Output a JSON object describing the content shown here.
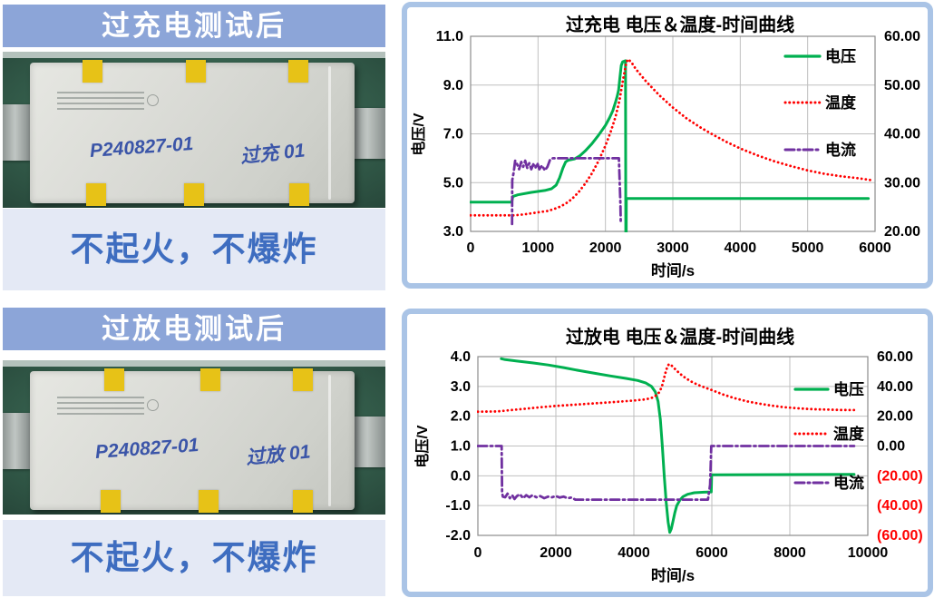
{
  "colors": {
    "banner": "#8CA5D8",
    "card_border": "#AAC4E6",
    "verdict_bg": "#E4E9F5",
    "verdict_fg": "#3E6DC0",
    "voltage_green": "#00B050",
    "temperature_red": "#FF0000",
    "current_purple": "#7030A0"
  },
  "panels": {
    "overcharge": {
      "header": "过充电测试后",
      "result": "不起火，不爆炸",
      "cell_markings": {
        "id": "P240827-01",
        "test": "过充 01"
      }
    },
    "overdischarge": {
      "header": "过放电测试后",
      "result": "不起火，不爆炸",
      "cell_markings": {
        "id": "P240827-01",
        "test": "过放 01"
      }
    }
  },
  "chart_data": [
    {
      "type": "line",
      "title": "过充电 电压＆温度-时间曲线",
      "xlabel": "时间/s",
      "ylabel_left": "电压/V",
      "grid": true,
      "legend": {
        "position": "right-inside",
        "entries": [
          "电压",
          "温度",
          "电流"
        ]
      },
      "x": {
        "min": 0,
        "max": 6000,
        "ticks": [
          {
            "v": 0,
            "t": "0"
          },
          {
            "v": 1000,
            "t": "1000"
          },
          {
            "v": 2000,
            "t": "2000"
          },
          {
            "v": 3000,
            "t": "3000"
          },
          {
            "v": 4000,
            "t": "4000"
          },
          {
            "v": 5000,
            "t": "5000"
          },
          {
            "v": 6000,
            "t": "6000"
          }
        ]
      },
      "y_left": {
        "min": 3,
        "max": 11,
        "ticks": [
          {
            "v": 11,
            "t": "11.0"
          },
          {
            "v": 9,
            "t": "9.0"
          },
          {
            "v": 7,
            "t": "7.0"
          },
          {
            "v": 5,
            "t": "5.0"
          },
          {
            "v": 3,
            "t": "3.0"
          }
        ]
      },
      "y_right": {
        "min": 20,
        "max": 60,
        "ticks": [
          {
            "v": 60,
            "t": "60.00"
          },
          {
            "v": 50,
            "t": "50.00"
          },
          {
            "v": 40,
            "t": "40.00"
          },
          {
            "v": 30,
            "t": "30.00"
          },
          {
            "v": 20,
            "t": "20.00"
          }
        ]
      },
      "series": [
        {
          "name": "电压",
          "color": "#00B050",
          "style": "solid",
          "axis": "left",
          "points": [
            [
              0,
              4.2
            ],
            [
              610,
              4.2
            ],
            [
              625,
              4.43
            ],
            [
              700,
              4.5
            ],
            [
              900,
              4.6
            ],
            [
              1100,
              4.68
            ],
            [
              1200,
              4.75
            ],
            [
              1270,
              4.9
            ],
            [
              1320,
              5.2
            ],
            [
              1370,
              5.6
            ],
            [
              1410,
              5.85
            ],
            [
              1450,
              5.92
            ],
            [
              1540,
              5.97
            ],
            [
              1620,
              6.1
            ],
            [
              1700,
              6.3
            ],
            [
              1800,
              6.6
            ],
            [
              1900,
              6.95
            ],
            [
              2000,
              7.35
            ],
            [
              2060,
              7.65
            ],
            [
              2110,
              7.95
            ],
            [
              2150,
              8.3
            ],
            [
              2175,
              8.55
            ],
            [
              2195,
              8.8
            ],
            [
              2215,
              9.3
            ],
            [
              2235,
              9.8
            ],
            [
              2255,
              9.95
            ],
            [
              2298,
              10.0
            ],
            [
              2302,
              2.95
            ],
            [
              2308,
              2.95
            ],
            [
              2310,
              4.35
            ],
            [
              5900,
              4.35
            ]
          ]
        },
        {
          "name": "温度",
          "color": "#FF0000",
          "style": "dotted",
          "axis": "right",
          "points": [
            [
              0,
              23.3
            ],
            [
              650,
              23.3
            ],
            [
              800,
              23.5
            ],
            [
              1000,
              23.9
            ],
            [
              1150,
              24.2
            ],
            [
              1300,
              24.9
            ],
            [
              1400,
              25.6
            ],
            [
              1500,
              26.6
            ],
            [
              1600,
              28.0
            ],
            [
              1700,
              29.8
            ],
            [
              1800,
              31.9
            ],
            [
              1900,
              34.5
            ],
            [
              2000,
              37.6
            ],
            [
              2080,
              40.5
            ],
            [
              2150,
              43.5
            ],
            [
              2210,
              47.0
            ],
            [
              2260,
              51.0
            ],
            [
              2300,
              54.0
            ],
            [
              2330,
              55.3
            ],
            [
              2380,
              54.8
            ],
            [
              2450,
              53.3
            ],
            [
              2600,
              50.8
            ],
            [
              2800,
              47.9
            ],
            [
              3000,
              45.4
            ],
            [
              3200,
              43.2
            ],
            [
              3400,
              41.4
            ],
            [
              3600,
              39.8
            ],
            [
              3800,
              38.3
            ],
            [
              4000,
              37.0
            ],
            [
              4250,
              35.6
            ],
            [
              4500,
              34.4
            ],
            [
              4750,
              33.4
            ],
            [
              5000,
              32.5
            ],
            [
              5250,
              31.8
            ],
            [
              5500,
              31.3
            ],
            [
              5750,
              30.9
            ],
            [
              5950,
              30.5
            ]
          ]
        },
        {
          "name": "电流",
          "color": "#7030A0",
          "style": "dashdot",
          "axis": "left",
          "points": [
            [
              615,
              3.3
            ],
            [
              618,
              5.1
            ],
            [
              640,
              5.45
            ],
            [
              660,
              5.9
            ],
            [
              690,
              5.75
            ],
            [
              720,
              5.55
            ],
            [
              750,
              5.85
            ],
            [
              780,
              5.65
            ],
            [
              810,
              5.9
            ],
            [
              840,
              5.6
            ],
            [
              870,
              5.8
            ],
            [
              900,
              5.55
            ],
            [
              930,
              5.75
            ],
            [
              960,
              5.6
            ],
            [
              990,
              5.8
            ],
            [
              1020,
              5.55
            ],
            [
              1060,
              5.7
            ],
            [
              1100,
              5.5
            ],
            [
              1140,
              5.65
            ],
            [
              1180,
              5.95
            ],
            [
              1220,
              6.0
            ],
            [
              2200,
              6.0
            ],
            [
              2212,
              5.0
            ],
            [
              2222,
              4.1
            ],
            [
              2228,
              3.3
            ]
          ]
        }
      ]
    },
    {
      "type": "line",
      "title": "过放电 电压＆温度-时间曲线",
      "xlabel": "时间/s",
      "ylabel_left": "电压/V",
      "grid": true,
      "legend": {
        "position": "right-inside",
        "entries": [
          "电压",
          "温度",
          "电流"
        ]
      },
      "x": {
        "min": 0,
        "max": 10000,
        "ticks": [
          {
            "v": 0,
            "t": "0"
          },
          {
            "v": 2000,
            "t": "2000"
          },
          {
            "v": 4000,
            "t": "4000"
          },
          {
            "v": 6000,
            "t": "6000"
          },
          {
            "v": 8000,
            "t": "8000"
          },
          {
            "v": 10000,
            "t": "10000"
          }
        ]
      },
      "y_left": {
        "min": -2,
        "max": 4,
        "ticks": [
          {
            "v": 4,
            "t": "4.0"
          },
          {
            "v": 3,
            "t": "3.0"
          },
          {
            "v": 2,
            "t": "2.0"
          },
          {
            "v": 1,
            "t": "1.0"
          },
          {
            "v": 0,
            "t": "0.0"
          },
          {
            "v": -1,
            "t": "-1.0"
          },
          {
            "v": -2,
            "t": "-2.0"
          }
        ]
      },
      "y_right": {
        "min": -60,
        "max": 60,
        "ticks": [
          {
            "v": 60,
            "t": "60.00"
          },
          {
            "v": 40,
            "t": "40.00"
          },
          {
            "v": 20,
            "t": "20.00"
          },
          {
            "v": 0,
            "t": "0.00"
          },
          {
            "v": -20,
            "t": "(20.00)",
            "red": true
          },
          {
            "v": -40,
            "t": "(40.00)",
            "red": true
          },
          {
            "v": -60,
            "t": "(60.00)",
            "red": true
          }
        ]
      },
      "series": [
        {
          "name": "电压",
          "color": "#00B050",
          "style": "solid",
          "axis": "left",
          "points": [
            [
              600,
              3.93
            ],
            [
              700,
              3.9
            ],
            [
              1000,
              3.85
            ],
            [
              1400,
              3.79
            ],
            [
              1800,
              3.72
            ],
            [
              2200,
              3.63
            ],
            [
              2600,
              3.53
            ],
            [
              3000,
              3.44
            ],
            [
              3400,
              3.35
            ],
            [
              3800,
              3.27
            ],
            [
              4100,
              3.2
            ],
            [
              4300,
              3.12
            ],
            [
              4450,
              3.0
            ],
            [
              4550,
              2.82
            ],
            [
              4620,
              2.5
            ],
            [
              4680,
              1.9
            ],
            [
              4730,
              1.0
            ],
            [
              4780,
              0.0
            ],
            [
              4830,
              -0.9
            ],
            [
              4880,
              -1.55
            ],
            [
              4920,
              -1.9
            ],
            [
              4960,
              -1.78
            ],
            [
              5000,
              -1.55
            ],
            [
              5050,
              -1.25
            ],
            [
              5100,
              -1.0
            ],
            [
              5180,
              -0.82
            ],
            [
              5260,
              -0.7
            ],
            [
              5380,
              -0.62
            ],
            [
              5550,
              -0.57
            ],
            [
              5800,
              -0.55
            ],
            [
              5985,
              -0.54
            ],
            [
              5995,
              0.03
            ],
            [
              9650,
              0.05
            ]
          ]
        },
        {
          "name": "温度",
          "color": "#FF0000",
          "style": "dotted",
          "axis": "right",
          "points": [
            [
              0,
              23.0
            ],
            [
              500,
              23.2
            ],
            [
              800,
              24.0
            ],
            [
              1200,
              25.0
            ],
            [
              1600,
              26.0
            ],
            [
              2000,
              26.9
            ],
            [
              2400,
              27.6
            ],
            [
              2800,
              28.3
            ],
            [
              3200,
              29.0
            ],
            [
              3600,
              29.7
            ],
            [
              4000,
              30.5
            ],
            [
              4300,
              31.3
            ],
            [
              4450,
              32.2
            ],
            [
              4550,
              33.5
            ],
            [
              4650,
              36.0
            ],
            [
              4720,
              40.0
            ],
            [
              4780,
              46.0
            ],
            [
              4830,
              51.0
            ],
            [
              4870,
              54.0
            ],
            [
              4910,
              55.0
            ],
            [
              4970,
              54.0
            ],
            [
              5100,
              50.5
            ],
            [
              5250,
              47.0
            ],
            [
              5450,
              43.5
            ],
            [
              5650,
              41.0
            ],
            [
              5900,
              38.5
            ],
            [
              6000,
              37.5
            ],
            [
              6300,
              34.5
            ],
            [
              6600,
              32.0
            ],
            [
              6900,
              30.0
            ],
            [
              7200,
              28.5
            ],
            [
              7500,
              27.2
            ],
            [
              7800,
              26.2
            ],
            [
              8100,
              25.5
            ],
            [
              8400,
              25.0
            ],
            [
              8700,
              24.6
            ],
            [
              9000,
              24.4
            ],
            [
              9300,
              24.2
            ],
            [
              9650,
              24.1
            ]
          ]
        },
        {
          "name": "电流",
          "color": "#7030A0",
          "style": "dashdot",
          "axis": "left",
          "points": [
            [
              0,
              1.0
            ],
            [
              610,
              1.0
            ],
            [
              615,
              0.3
            ],
            [
              622,
              -0.55
            ],
            [
              640,
              -0.7
            ],
            [
              700,
              -0.72
            ],
            [
              760,
              -0.6
            ],
            [
              820,
              -0.75
            ],
            [
              880,
              -0.65
            ],
            [
              940,
              -0.78
            ],
            [
              1000,
              -0.68
            ],
            [
              1080,
              -0.62
            ],
            [
              1160,
              -0.75
            ],
            [
              1240,
              -0.65
            ],
            [
              1320,
              -0.72
            ],
            [
              1400,
              -0.65
            ],
            [
              1500,
              -0.72
            ],
            [
              1600,
              -0.68
            ],
            [
              1700,
              -0.75
            ],
            [
              1800,
              -0.7
            ],
            [
              1900,
              -0.72
            ],
            [
              2000,
              -0.68
            ],
            [
              2100,
              -0.73
            ],
            [
              2200,
              -0.7
            ],
            [
              2300,
              -0.75
            ],
            [
              2400,
              -0.73
            ],
            [
              2500,
              -0.8
            ],
            [
              5900,
              -0.8
            ],
            [
              5955,
              -0.3
            ],
            [
              5985,
              1.0
            ],
            [
              9650,
              1.0
            ]
          ]
        }
      ]
    }
  ]
}
